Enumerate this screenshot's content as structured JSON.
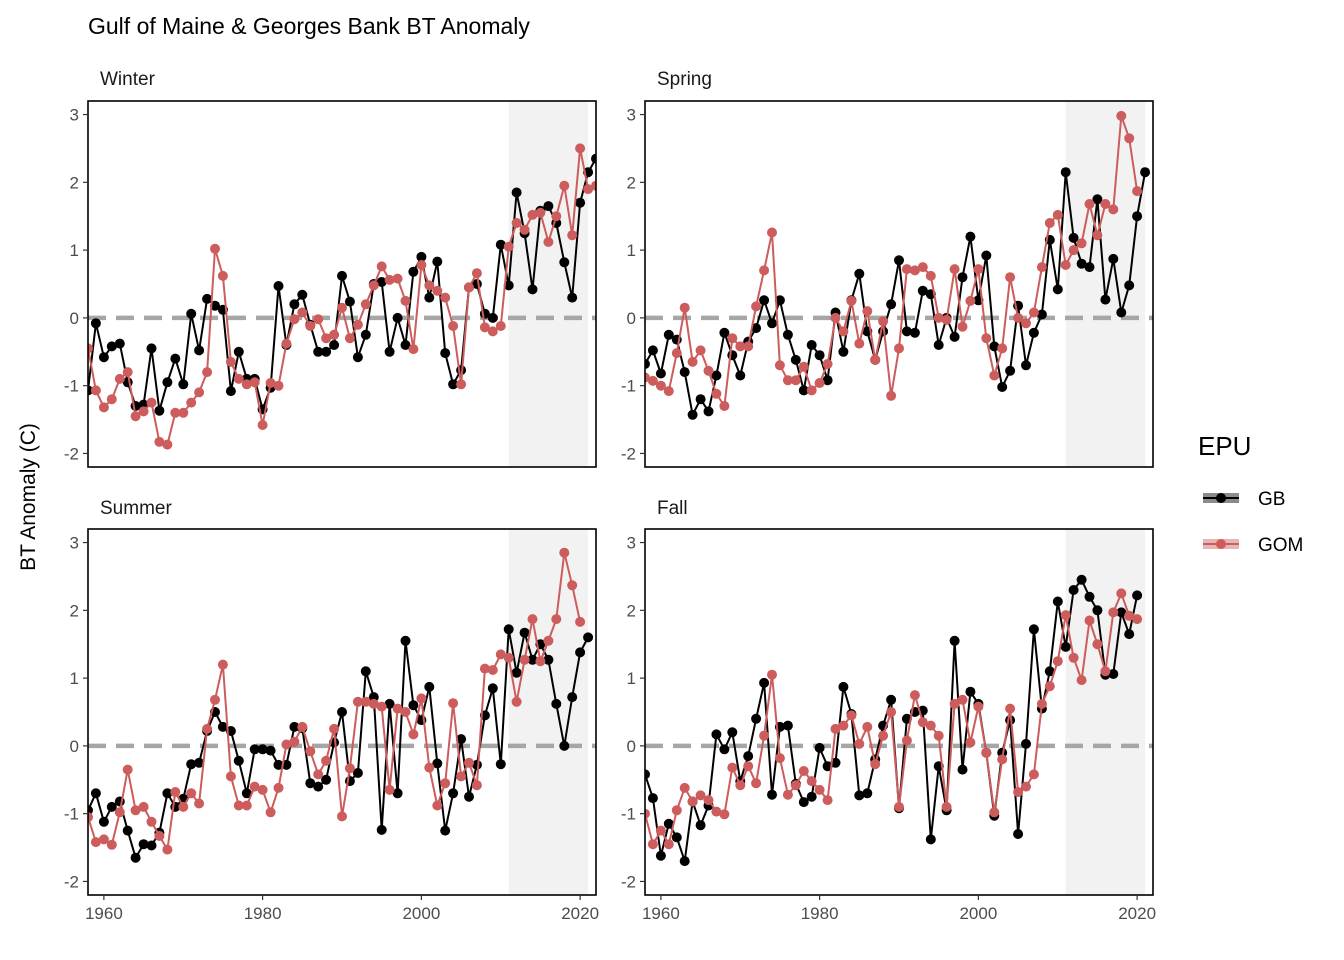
{
  "chart_data": {
    "type": "line",
    "title": "Gulf of Maine & Georges Bank BT Anomaly",
    "ylabel": "BT Anomaly (C)",
    "xlabel": "",
    "xlim": [
      1958,
      2022
    ],
    "ylim": [
      -2.2,
      3.2
    ],
    "x_ticks": [
      1960,
      1980,
      2000,
      2020
    ],
    "y_ticks": [
      -2,
      -1,
      0,
      1,
      2,
      3
    ],
    "reference_line": 0,
    "shaded_range": [
      2011,
      2021
    ],
    "legend": {
      "title": "EPU",
      "position": "right",
      "entries": [
        {
          "name": "GB",
          "color": "#000000"
        },
        {
          "name": "GOM",
          "color": "#cd5c5c"
        }
      ]
    },
    "panels": [
      {
        "name": "Winter",
        "x_start": 1958,
        "series": [
          {
            "name": "GB",
            "color": "#000000",
            "values": [
              -1.07,
              -0.08,
              -0.58,
              -0.42,
              -0.38,
              -0.95,
              -1.3,
              -1.28,
              -0.45,
              -1.37,
              -0.95,
              -0.6,
              -0.98,
              0.06,
              -0.48,
              0.28,
              0.18,
              0.12,
              -1.08,
              -0.5,
              -0.9,
              -0.9,
              -1.35,
              -1.03,
              0.47,
              -0.4,
              0.2,
              0.34,
              -0.1,
              -0.5,
              -0.5,
              -0.4,
              0.62,
              0.24,
              -0.58,
              -0.25,
              0.5,
              0.53,
              -0.5,
              0,
              -0.4,
              0.68,
              0.9,
              0.3,
              0.83,
              -0.52,
              -0.98,
              -0.77,
              0.45,
              0.5,
              0.06,
              0,
              1.08,
              0.48,
              1.85,
              1.25,
              0.42,
              1.58,
              1.65,
              1.4,
              0.82,
              0.3,
              1.7,
              2.15,
              2.35
            ]
          },
          {
            "name": "GOM",
            "color": "#cd5c5c",
            "values": [
              -0.45,
              -1.07,
              -1.32,
              -1.2,
              -0.9,
              -0.8,
              -1.45,
              -1.38,
              -1.25,
              -1.83,
              -1.87,
              -1.4,
              -1.4,
              -1.25,
              -1.1,
              -0.8,
              1.02,
              0.62,
              -0.65,
              -0.9,
              -0.98,
              -0.95,
              -1.58,
              -0.96,
              -1,
              -0.38,
              -0.02,
              0.08,
              -0.12,
              -0.02,
              -0.3,
              -0.25,
              0.15,
              -0.3,
              -0.1,
              0.2,
              0.48,
              0.76,
              0.56,
              0.58,
              0.25,
              -0.46,
              0.78,
              0.48,
              0.4,
              0.3,
              -0.12,
              -0.98,
              0.45,
              0.66,
              -0.14,
              -0.2,
              -0.12,
              1.05,
              1.4,
              1.3,
              1.52,
              1.55,
              1.12,
              1.5,
              1.95,
              1.22,
              2.5,
              1.9,
              1.95
            ]
          }
        ]
      },
      {
        "name": "Spring",
        "x_start": 1958,
        "series": [
          {
            "name": "GB",
            "color": "#000000",
            "values": [
              -0.68,
              -0.48,
              -0.82,
              -0.25,
              -0.32,
              -0.8,
              -1.43,
              -1.2,
              -1.38,
              -0.85,
              -0.22,
              -0.55,
              -0.85,
              -0.35,
              -0.15,
              0.26,
              -0.08,
              0.26,
              -0.25,
              -0.62,
              -1.07,
              -0.4,
              -0.55,
              -0.92,
              0.08,
              -0.5,
              0.26,
              0.65,
              -0.2,
              -0.62,
              -0.2,
              0.2,
              0.85,
              -0.2,
              -0.22,
              0.4,
              0.35,
              -0.4,
              0,
              -0.28,
              0.6,
              1.2,
              0.26,
              0.92,
              -0.42,
              -1.02,
              -0.78,
              0.18,
              -0.7,
              -0.22,
              0.05,
              1.15,
              0.42,
              2.15,
              1.18,
              0.8,
              0.75,
              1.75,
              0.27,
              0.87,
              0.08,
              0.48,
              1.5,
              2.15
            ]
          },
          {
            "name": "GOM",
            "color": "#cd5c5c",
            "values": [
              -0.88,
              -0.93,
              -1,
              -1.08,
              -0.52,
              0.15,
              -0.65,
              -0.48,
              -0.78,
              -1.12,
              -1.3,
              -0.3,
              -0.42,
              -0.42,
              0.17,
              0.7,
              1.26,
              -0.7,
              -0.92,
              -0.92,
              -0.72,
              -1.07,
              -0.96,
              -0.68,
              0,
              -0.2,
              0.25,
              -0.38,
              0.1,
              -0.62,
              -0.05,
              -1.15,
              -0.45,
              0.72,
              0.7,
              0.75,
              0.62,
              0,
              -0.03,
              0.72,
              -0.13,
              0.25,
              0.72,
              -0.3,
              -0.85,
              -0.45,
              0.6,
              0,
              -0.08,
              0.08,
              0.75,
              1.4,
              1.52,
              0.78,
              1,
              1.1,
              1.68,
              1.22,
              1.68,
              1.6,
              2.98,
              2.65,
              1.87
            ]
          }
        ]
      },
      {
        "name": "Summer",
        "x_start": 1958,
        "series": [
          {
            "name": "GB",
            "color": "#000000",
            "values": [
              -0.95,
              -0.7,
              -1.12,
              -0.9,
              -0.82,
              -1.25,
              -1.65,
              -1.45,
              -1.47,
              -1.28,
              -0.7,
              -0.9,
              -0.78,
              -0.27,
              -0.25,
              0.22,
              0.5,
              0.28,
              0.22,
              -0.22,
              -0.7,
              -0.05,
              -0.05,
              -0.07,
              -0.28,
              -0.28,
              0.28,
              0.26,
              -0.55,
              -0.6,
              -0.5,
              0.05,
              0.5,
              -0.52,
              -0.4,
              1.1,
              0.72,
              -1.24,
              0.62,
              -0.7,
              1.55,
              0.6,
              0.38,
              0.87,
              -0.26,
              -1.25,
              -0.7,
              0.1,
              -0.75,
              -0.28,
              0.45,
              0.85,
              -0.27,
              1.72,
              1.08,
              1.67,
              1.27,
              1.5,
              1.27,
              0.62,
              0,
              0.72,
              1.38,
              1.6
            ]
          },
          {
            "name": "GOM",
            "color": "#cd5c5c",
            "values": [
              -1.05,
              -1.42,
              -1.38,
              -1.46,
              -0.98,
              -0.35,
              -0.95,
              -0.9,
              -1.12,
              -1.33,
              -1.53,
              -0.68,
              -0.9,
              -0.7,
              -0.85,
              0.25,
              0.68,
              1.2,
              -0.45,
              -0.88,
              -0.88,
              -0.6,
              -0.65,
              -0.98,
              -0.62,
              0.02,
              0.06,
              0.28,
              -0.08,
              -0.42,
              -0.22,
              0.25,
              -1.04,
              -0.33,
              0.65,
              0.65,
              0.62,
              0.58,
              -0.65,
              0.55,
              0.5,
              0.17,
              0.7,
              -0.32,
              -0.88,
              -0.55,
              0.63,
              -0.45,
              -0.25,
              -0.58,
              1.14,
              1.12,
              1.35,
              1.3,
              0.65,
              1.27,
              1.87,
              1.25,
              1.55,
              1.87,
              2.85,
              2.37,
              1.83
            ]
          }
        ]
      },
      {
        "name": "Fall",
        "x_start": 1958,
        "series": [
          {
            "name": "GB",
            "color": "#000000",
            "values": [
              -0.42,
              -0.77,
              -1.62,
              -1.15,
              -1.35,
              -1.7,
              -0.82,
              -1.17,
              -0.88,
              0.17,
              -0.05,
              0.2,
              -0.52,
              -0.15,
              0.4,
              0.93,
              -0.72,
              0.28,
              0.3,
              -0.56,
              -0.83,
              -0.75,
              -0.03,
              -0.3,
              -0.25,
              0.87,
              0.47,
              -0.73,
              -0.7,
              -0.2,
              0.3,
              0.68,
              -0.92,
              0.4,
              0.5,
              0.52,
              -1.38,
              -0.3,
              -0.95,
              1.55,
              -0.35,
              0.8,
              0.62,
              -0.1,
              -1.03,
              -0.1,
              0.38,
              -1.3,
              0.03,
              1.72,
              0.55,
              1.1,
              2.13,
              1.46,
              2.3,
              2.45,
              2.2,
              2,
              1.05,
              1.06,
              1.97,
              1.65,
              2.22
            ]
          },
          {
            "name": "GOM",
            "color": "#cd5c5c",
            "values": [
              -1,
              -1.45,
              -1.25,
              -1.45,
              -0.95,
              -0.62,
              -0.82,
              -0.73,
              -0.8,
              -0.97,
              -1.01,
              -0.32,
              -0.58,
              -0.3,
              -0.55,
              0.15,
              1.05,
              -0.18,
              -0.72,
              -0.58,
              -0.37,
              -0.52,
              -0.65,
              -0.8,
              0.25,
              0.3,
              0.45,
              0.03,
              0.28,
              -0.27,
              0.15,
              0.5,
              -0.9,
              0.08,
              0.75,
              0.35,
              0.3,
              0.15,
              -0.9,
              0.62,
              0.68,
              0.05,
              0.58,
              -0.1,
              -0.98,
              -0.2,
              0.55,
              -0.68,
              -0.6,
              -0.42,
              0.62,
              0.88,
              1.25,
              1.93,
              1.3,
              0.97,
              1.85,
              1.5,
              1.1,
              1.97,
              2.25,
              1.92,
              1.87
            ]
          }
        ]
      }
    ]
  }
}
